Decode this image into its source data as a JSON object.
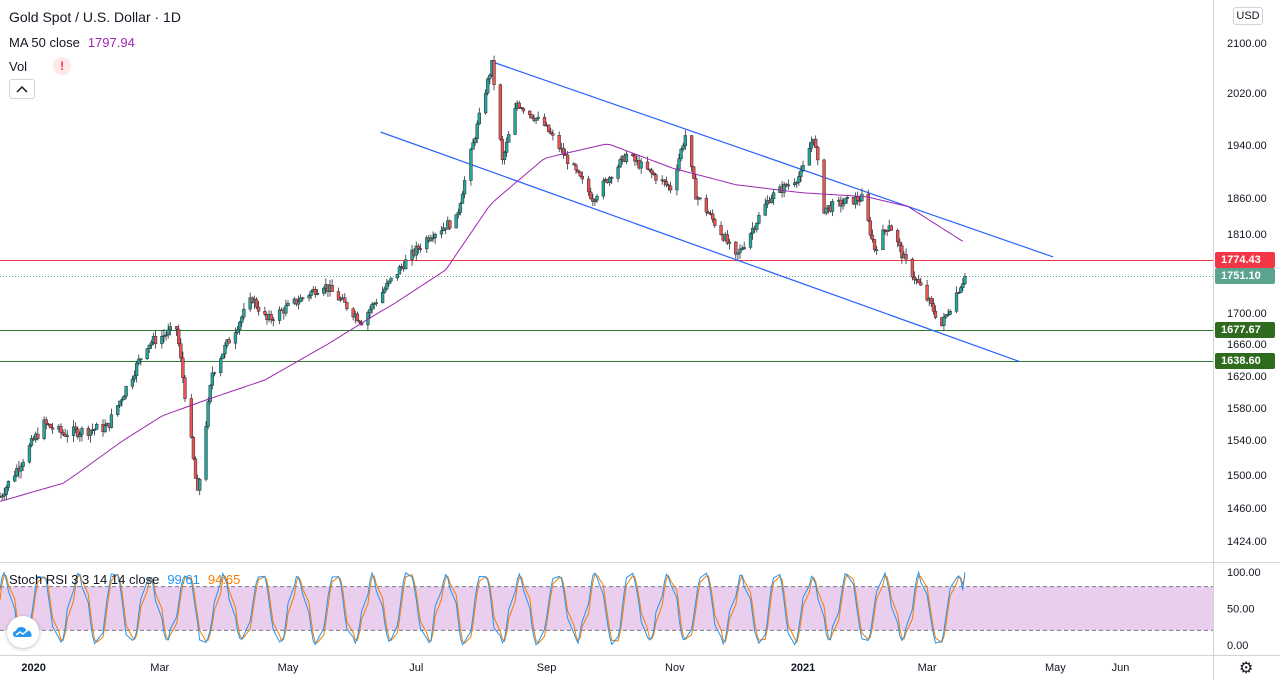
{
  "header": {
    "symbol_title": "Gold Spot / U.S. Dollar · 1D",
    "ma_label": "MA 50 close",
    "ma_value": "1797.94",
    "vol_label": "Vol",
    "currency": "USD"
  },
  "stoch": {
    "label": "Stoch RSI 3 3 14 14 close",
    "k_value": "99.61",
    "d_value": "94.65"
  },
  "price_tags": {
    "resistance": "1774.43",
    "last": "1751.10",
    "support1": "1677.67",
    "support2": "1638.60"
  },
  "colors": {
    "up": "#26a69a",
    "down": "#ef5350",
    "ma": "#9c27b0",
    "channel": "#2962ff",
    "resistance": "#f23645",
    "support": "#2e7d32",
    "stoch_k": "#2196f3",
    "stoch_d": "#f57c00",
    "stoch_band": "#e1bee7"
  },
  "chart_data": [
    {
      "type": "candlestick",
      "title": "Gold Spot / U.S. Dollar · 1D",
      "y_ticks": [
        "2100.00",
        "2020.00",
        "1940.00",
        "1860.00",
        "1810.00",
        "1700.00",
        "1660.00",
        "1620.00",
        "1580.00",
        "1540.00",
        "1500.00",
        "1460.00",
        "1424.00"
      ],
      "y_tick_values": [
        2100,
        2020,
        1940,
        1860,
        1810,
        1700,
        1660,
        1620,
        1580,
        1540,
        1500,
        1460,
        1424
      ],
      "x_labels": [
        "2020",
        "Mar",
        "May",
        "Jul",
        "Sep",
        "Nov",
        "2021",
        "Mar",
        "May",
        "Jun"
      ],
      "x_label_dates": [
        "2020-01-01",
        "2020-03-01",
        "2020-05-01",
        "2020-07-01",
        "2020-09-01",
        "2020-11-01",
        "2021-01-01",
        "2021-03-01",
        "2021-05-01",
        "2021-06-01"
      ],
      "x_range": [
        "2019-12-16",
        "2021-07-15"
      ],
      "price_anchors": [
        [
          "2019-12-16",
          1474
        ],
        [
          "2020-01-06",
          1560
        ],
        [
          "2020-01-15",
          1548
        ],
        [
          "2020-02-05",
          1556
        ],
        [
          "2020-02-24",
          1660
        ],
        [
          "2020-03-09",
          1680
        ],
        [
          "2020-03-19",
          1475
        ],
        [
          "2020-03-26",
          1625
        ],
        [
          "2020-04-14",
          1720
        ],
        [
          "2020-04-21",
          1690
        ],
        [
          "2020-05-18",
          1740
        ],
        [
          "2020-06-05",
          1690
        ],
        [
          "2020-06-24",
          1765
        ],
        [
          "2020-07-08",
          1810
        ],
        [
          "2020-07-20",
          1830
        ],
        [
          "2020-08-06",
          2066
        ],
        [
          "2020-08-11",
          1915
        ],
        [
          "2020-08-18",
          2005
        ],
        [
          "2020-08-31",
          1970
        ],
        [
          "2020-09-23",
          1860
        ],
        [
          "2020-10-09",
          1925
        ],
        [
          "2020-10-30",
          1875
        ],
        [
          "2020-11-06",
          1955
        ],
        [
          "2020-11-11",
          1865
        ],
        [
          "2020-11-24",
          1808
        ],
        [
          "2020-11-30",
          1776
        ],
        [
          "2020-12-16",
          1860
        ],
        [
          "2020-12-31",
          1895
        ],
        [
          "2021-01-06",
          1955
        ],
        [
          "2021-01-11",
          1845
        ],
        [
          "2021-01-22",
          1855
        ],
        [
          "2021-01-29",
          1860
        ],
        [
          "2021-02-04",
          1790
        ],
        [
          "2021-02-11",
          1825
        ],
        [
          "2021-02-18",
          1775
        ],
        [
          "2021-02-26",
          1735
        ],
        [
          "2021-03-08",
          1684
        ],
        [
          "2021-03-15",
          1728
        ],
        [
          "2021-03-19",
          1751
        ]
      ],
      "ma50_anchors": [
        [
          "2019-12-16",
          1468
        ],
        [
          "2020-01-15",
          1490
        ],
        [
          "2020-02-10",
          1535
        ],
        [
          "2020-03-02",
          1570
        ],
        [
          "2020-03-23",
          1590
        ],
        [
          "2020-04-20",
          1615
        ],
        [
          "2020-05-20",
          1660
        ],
        [
          "2020-06-20",
          1712
        ],
        [
          "2020-07-15",
          1760
        ],
        [
          "2020-08-05",
          1850
        ],
        [
          "2020-08-31",
          1920
        ],
        [
          "2020-09-30",
          1942
        ],
        [
          "2020-10-31",
          1905
        ],
        [
          "2020-11-30",
          1880
        ],
        [
          "2020-12-31",
          1868
        ],
        [
          "2021-01-31",
          1862
        ],
        [
          "2021-02-20",
          1848
        ],
        [
          "2021-03-19",
          1797.94
        ]
      ],
      "channel_upper": [
        [
          "2020-08-06",
          2070
        ],
        [
          "2021-04-30",
          1778
        ]
      ],
      "channel_lower": [
        [
          "2020-06-14",
          1960
        ],
        [
          "2021-04-14",
          1638
        ]
      ],
      "horizontal_levels": [
        1774.43,
        1677.67,
        1638.6
      ],
      "last_price": 1751.1,
      "ma50_last": 1797.94
    },
    {
      "type": "line",
      "title": "Stoch RSI 3 3 14 14 close",
      "y_ticks": [
        "100.00",
        "50.00",
        "0.00"
      ],
      "y_tick_values": [
        100,
        50,
        0
      ],
      "ylim": [
        0,
        100
      ],
      "band": [
        20,
        80
      ],
      "last_k": 99.61,
      "last_d": 94.65
    }
  ]
}
